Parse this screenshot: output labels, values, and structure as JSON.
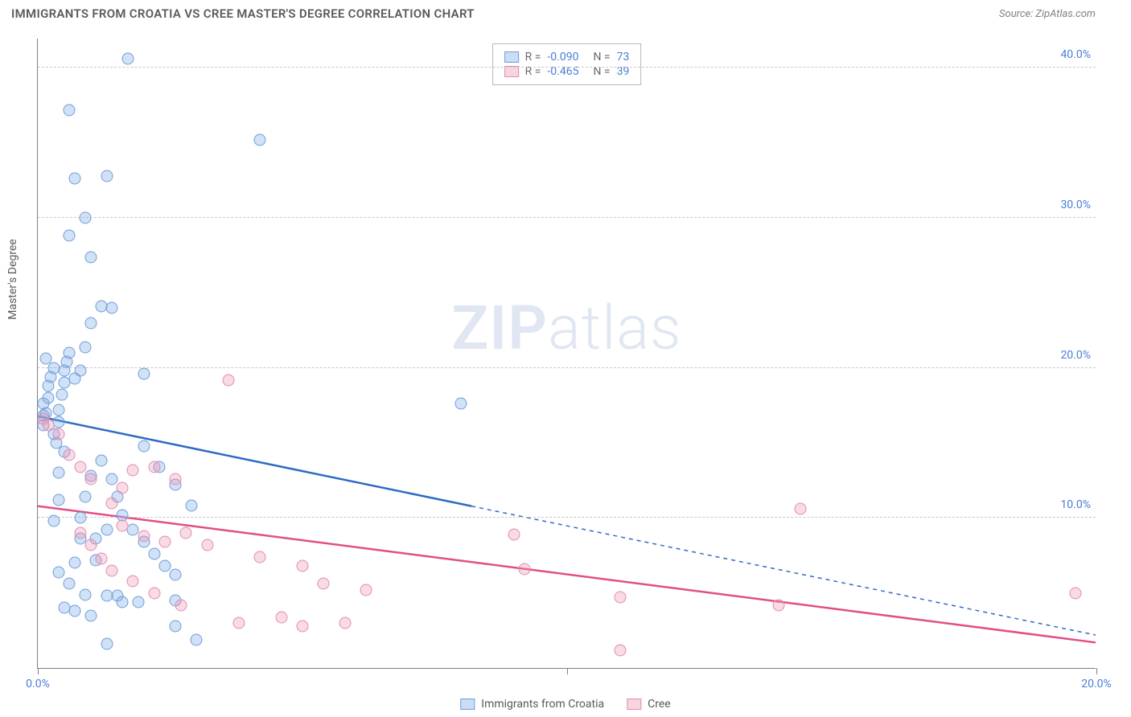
{
  "header": {
    "title": "IMMIGRANTS FROM CROATIA VS CREE MASTER'S DEGREE CORRELATION CHART",
    "source": "Source: ZipAtlas.com"
  },
  "chart": {
    "type": "scatter",
    "y_axis_title": "Master's Degree",
    "watermark_bold": "ZIP",
    "watermark_light": "atlas",
    "background_color": "#ffffff",
    "grid_color": "#c9c9c9",
    "axis_color": "#808080",
    "label_color": "#4a7dd6",
    "label_fontsize": 14,
    "title_fontsize": 15,
    "marker_radius": 7.5,
    "xlim": [
      0,
      20
    ],
    "ylim": [
      0,
      42
    ],
    "x_ticks": [
      0,
      10,
      20
    ],
    "x_tick_labels": [
      "0.0%",
      "",
      "20.0%"
    ],
    "y_grid": [
      10,
      20,
      30,
      40
    ],
    "y_labels": [
      "10.0%",
      "20.0%",
      "30.0%",
      "40.0%"
    ],
    "series": [
      {
        "name": "Immigrants from Croatia",
        "key": "a",
        "color_fill": "rgba(124,169,230,0.35)",
        "color_stroke": "#6e9ddb",
        "trend_color": "#2d6bc4",
        "R": "-0.090",
        "N": "73",
        "trend": {
          "x1": 0,
          "y1": 16.8,
          "x2_solid": 8.2,
          "y2_solid": 10.8,
          "x2": 20,
          "y2": 2.2,
          "dashed_after_solid": true
        },
        "points": [
          [
            0.1,
            16.2
          ],
          [
            0.1,
            16.8
          ],
          [
            0.15,
            17.0
          ],
          [
            0.1,
            17.6
          ],
          [
            0.2,
            18.0
          ],
          [
            0.2,
            18.8
          ],
          [
            0.25,
            19.4
          ],
          [
            0.3,
            20.0
          ],
          [
            0.15,
            20.6
          ],
          [
            0.3,
            15.6
          ],
          [
            0.35,
            15.0
          ],
          [
            0.4,
            16.4
          ],
          [
            0.4,
            17.2
          ],
          [
            0.45,
            18.2
          ],
          [
            0.5,
            19.0
          ],
          [
            0.5,
            19.8
          ],
          [
            0.55,
            20.4
          ],
          [
            0.6,
            21.0
          ],
          [
            0.7,
            19.3
          ],
          [
            0.8,
            19.8
          ],
          [
            0.9,
            21.4
          ],
          [
            1.0,
            23.0
          ],
          [
            1.2,
            24.1
          ],
          [
            1.4,
            24.0
          ],
          [
            1.0,
            27.4
          ],
          [
            0.6,
            28.8
          ],
          [
            0.9,
            30.0
          ],
          [
            1.3,
            32.8
          ],
          [
            0.7,
            32.6
          ],
          [
            1.7,
            40.6
          ],
          [
            0.6,
            37.2
          ],
          [
            4.2,
            35.2
          ],
          [
            1.2,
            13.8
          ],
          [
            1.4,
            12.6
          ],
          [
            1.5,
            11.4
          ],
          [
            1.6,
            10.2
          ],
          [
            1.8,
            9.2
          ],
          [
            2.0,
            8.4
          ],
          [
            2.2,
            7.6
          ],
          [
            2.4,
            6.8
          ],
          [
            2.6,
            6.2
          ],
          [
            2.0,
            14.8
          ],
          [
            2.3,
            13.4
          ],
          [
            2.6,
            12.2
          ],
          [
            2.9,
            10.8
          ],
          [
            2.0,
            19.6
          ],
          [
            1.3,
            4.8
          ],
          [
            1.5,
            4.8
          ],
          [
            1.1,
            7.2
          ],
          [
            1.1,
            8.6
          ],
          [
            0.8,
            10.0
          ],
          [
            0.9,
            11.4
          ],
          [
            1.0,
            12.8
          ],
          [
            1.3,
            9.2
          ],
          [
            1.6,
            4.4
          ],
          [
            1.9,
            4.4
          ],
          [
            0.9,
            4.9
          ],
          [
            0.7,
            3.8
          ],
          [
            1.0,
            3.5
          ],
          [
            1.3,
            1.6
          ],
          [
            2.6,
            2.8
          ],
          [
            2.6,
            4.5
          ],
          [
            3.0,
            1.9
          ],
          [
            0.5,
            4.0
          ],
          [
            0.6,
            5.6
          ],
          [
            0.7,
            7.0
          ],
          [
            0.8,
            8.6
          ],
          [
            0.4,
            13.0
          ],
          [
            0.5,
            14.4
          ],
          [
            0.3,
            9.8
          ],
          [
            0.4,
            11.2
          ],
          [
            8.0,
            17.6
          ],
          [
            0.4,
            6.4
          ]
        ]
      },
      {
        "name": "Cree",
        "key": "b",
        "color_fill": "rgba(236,151,178,0.35)",
        "color_stroke": "#e58bad",
        "trend_color": "#e14f85",
        "R": "-0.465",
        "N": "39",
        "trend": {
          "x1": 0,
          "y1": 10.8,
          "x2_solid": 20,
          "y2_solid": 1.7,
          "x2": 20,
          "y2": 1.7,
          "dashed_after_solid": false
        },
        "points": [
          [
            0.1,
            16.6
          ],
          [
            0.2,
            16.2
          ],
          [
            0.4,
            15.6
          ],
          [
            0.6,
            14.2
          ],
          [
            1.0,
            12.6
          ],
          [
            1.4,
            11.0
          ],
          [
            1.6,
            12.0
          ],
          [
            1.8,
            13.2
          ],
          [
            2.2,
            13.4
          ],
          [
            2.6,
            12.6
          ],
          [
            2.0,
            8.8
          ],
          [
            2.4,
            8.4
          ],
          [
            2.8,
            9.0
          ],
          [
            3.2,
            8.2
          ],
          [
            3.6,
            19.2
          ],
          [
            4.2,
            7.4
          ],
          [
            4.6,
            3.4
          ],
          [
            5.0,
            6.8
          ],
          [
            5.0,
            2.8
          ],
          [
            5.4,
            5.6
          ],
          [
            5.8,
            3.0
          ],
          [
            6.2,
            5.2
          ],
          [
            9.0,
            8.9
          ],
          [
            9.2,
            6.6
          ],
          [
            11.0,
            4.7
          ],
          [
            14.0,
            4.2
          ],
          [
            14.4,
            10.6
          ],
          [
            19.6,
            5.0
          ],
          [
            0.8,
            9.0
          ],
          [
            1.0,
            8.2
          ],
          [
            1.2,
            7.3
          ],
          [
            1.4,
            6.5
          ],
          [
            1.8,
            5.8
          ],
          [
            2.2,
            5.0
          ],
          [
            2.7,
            4.2
          ],
          [
            3.8,
            3.0
          ],
          [
            1.6,
            9.5
          ],
          [
            11.0,
            1.2
          ],
          [
            0.8,
            13.4
          ]
        ]
      }
    ],
    "legend_bottom": [
      {
        "key": "a",
        "label": "Immigrants from Croatia"
      },
      {
        "key": "b",
        "label": "Cree"
      }
    ]
  }
}
